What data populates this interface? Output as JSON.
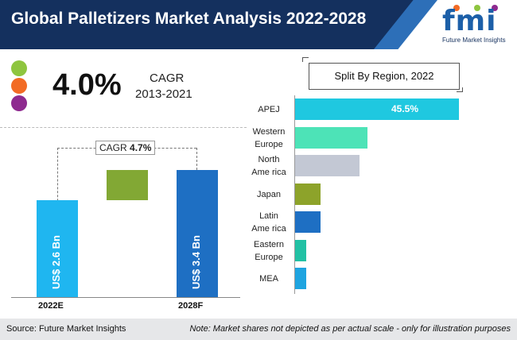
{
  "title": "Global Palletizers Market Analysis 2022-2028",
  "logo": {
    "text": "fmi",
    "subtitle": "Future Market Insights"
  },
  "colors": {
    "green": "#8ec53f",
    "orange": "#f26b25",
    "purple": "#8e2a8f",
    "navy": "#14305e",
    "cyan": "#1fc8e0"
  },
  "cagr": {
    "value": "4.0%",
    "label": "CAGR",
    "period": "2013-2021"
  },
  "waterfall": {
    "cagr_prefix": "CAGR",
    "cagr_value": "4.7%",
    "bars": [
      {
        "year": "2022E",
        "label": "US$ 2.6 Bn",
        "value": 2.6
      },
      {
        "year": "",
        "label": "",
        "value": 0.8,
        "increment": true
      },
      {
        "year": "2028F",
        "label": "US$ 3.4 Bn",
        "value": 3.4
      }
    ]
  },
  "chart_data": {
    "type": "bar",
    "title": "Split By Region, 2022",
    "orientation": "horizontal",
    "categories": [
      [
        "APEJ"
      ],
      [
        "Western",
        "Europe"
      ],
      [
        "North",
        "Ame rica"
      ],
      [
        "Japan"
      ],
      [
        "Latin",
        "Ame rica"
      ],
      [
        "Eastern",
        "Europe"
      ],
      [
        "MEA"
      ]
    ],
    "values": [
      45.5,
      20,
      18,
      7,
      7,
      3,
      3
    ],
    "value_labels": [
      "45.5%",
      "",
      "",
      "",
      "",
      "",
      ""
    ],
    "bar_colors": [
      "#1fc8e0",
      "#4de3b7",
      "#c3c8d4",
      "#8da32a",
      "#1e6fc3",
      "#22c1a4",
      "#1ea4e0"
    ]
  },
  "footer": {
    "source": "Source: Future Market Insights",
    "note": "Note: Market shares not depicted as per actual scale - only for illustration purposes"
  }
}
